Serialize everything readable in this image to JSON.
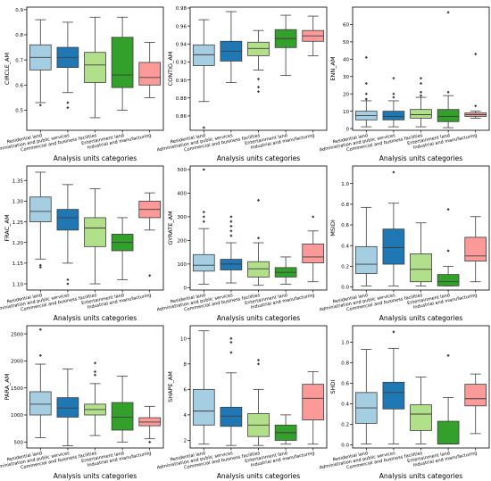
{
  "colors": {
    "residential": "#a6cee3",
    "administration": "#1f78b4",
    "commercial": "#b2df8a",
    "entertainment": "#33a02c",
    "industrial": "#fb9a99"
  },
  "category_labels": [
    "Residential land",
    "Administration and public services",
    "Commercial and business facilities",
    "Entertainment land",
    "Industrial and manufacturing"
  ],
  "xlabel": "Analysis units categories",
  "chart_data": [
    {
      "type": "box",
      "ylabel": "CIRCLE_AM",
      "ylim": [
        0.42,
        0.91
      ],
      "ticks": [
        0.5,
        0.6,
        0.7,
        0.8,
        0.9
      ],
      "tick_labels": [
        "0.5",
        "0.6",
        "0.7",
        "0.8",
        "0.9"
      ],
      "boxes": [
        {
          "whislo": 0.53,
          "q1": 0.66,
          "med": 0.71,
          "q3": 0.76,
          "whishi": 0.86,
          "fliers": [
            0.52
          ]
        },
        {
          "whislo": 0.57,
          "q1": 0.67,
          "med": 0.71,
          "q3": 0.75,
          "whishi": 0.85,
          "fliers": [
            0.51,
            0.53
          ]
        },
        {
          "whislo": 0.47,
          "q1": 0.61,
          "med": 0.68,
          "q3": 0.73,
          "whishi": 0.87,
          "fliers": []
        },
        {
          "whislo": 0.5,
          "q1": 0.59,
          "med": 0.64,
          "q3": 0.79,
          "whishi": 0.87,
          "fliers": []
        },
        {
          "whislo": 0.55,
          "q1": 0.6,
          "med": 0.63,
          "q3": 0.69,
          "whishi": 0.77,
          "fliers": []
        }
      ]
    },
    {
      "type": "box",
      "ylabel": "CONTIG_AM",
      "ylim": [
        0.844,
        0.981
      ],
      "ticks": [
        0.86,
        0.88,
        0.9,
        0.92,
        0.94,
        0.96,
        0.98
      ],
      "tick_labels": [
        "0.86",
        "0.88",
        "0.90",
        "0.92",
        "0.94",
        "0.96",
        "0.98"
      ],
      "boxes": [
        {
          "whislo": 0.876,
          "q1": 0.916,
          "med": 0.928,
          "q3": 0.939,
          "whishi": 0.967,
          "fliers": [
            0.847
          ]
        },
        {
          "whislo": 0.897,
          "q1": 0.921,
          "med": 0.932,
          "q3": 0.943,
          "whishi": 0.976,
          "fliers": []
        },
        {
          "whislo": 0.911,
          "q1": 0.927,
          "med": 0.935,
          "q3": 0.942,
          "whishi": 0.955,
          "fliers": [
            0.887,
            0.892,
            0.901
          ]
        },
        {
          "whislo": 0.905,
          "q1": 0.936,
          "med": 0.946,
          "q3": 0.956,
          "whishi": 0.972,
          "fliers": []
        },
        {
          "whislo": 0.927,
          "q1": 0.943,
          "med": 0.949,
          "q3": 0.955,
          "whishi": 0.971,
          "fliers": []
        }
      ]
    },
    {
      "type": "box",
      "ylabel": "ENN_AM",
      "ylim": [
        -1,
        70
      ],
      "ticks": [
        0,
        10,
        20,
        30,
        40,
        50,
        60
      ],
      "tick_labels": [
        "0",
        "10",
        "20",
        "30",
        "40",
        "50",
        "60"
      ],
      "boxes": [
        {
          "whislo": 1,
          "q1": 5,
          "med": 7.5,
          "q3": 10,
          "whishi": 16,
          "fliers": [
            17,
            20,
            26,
            41
          ]
        },
        {
          "whislo": 1,
          "q1": 5,
          "med": 7,
          "q3": 10,
          "whishi": 16,
          "fliers": [
            18,
            20,
            29
          ]
        },
        {
          "whislo": 1,
          "q1": 6,
          "med": 8,
          "q3": 11,
          "whishi": 18,
          "fliers": [
            19,
            21,
            26,
            29
          ]
        },
        {
          "whislo": 0.5,
          "q1": 4,
          "med": 7,
          "q3": 11,
          "whishi": 19,
          "fliers": [
            21,
            67
          ]
        },
        {
          "whislo": 6,
          "q1": 7,
          "med": 8,
          "q3": 9,
          "whishi": 10,
          "fliers": [
            13,
            43
          ]
        }
      ]
    },
    {
      "type": "box",
      "ylabel": "FRAC_AM",
      "ylim": [
        1.085,
        1.385
      ],
      "ticks": [
        1.1,
        1.15,
        1.2,
        1.25,
        1.3,
        1.35
      ],
      "tick_labels": [
        "1.10",
        "1.15",
        "1.20",
        "1.25",
        "1.30",
        "1.35"
      ],
      "boxes": [
        {
          "whislo": 1.16,
          "q1": 1.25,
          "med": 1.275,
          "q3": 1.31,
          "whishi": 1.37,
          "fliers": [
            1.14,
            1.145
          ]
        },
        {
          "whislo": 1.15,
          "q1": 1.23,
          "med": 1.26,
          "q3": 1.28,
          "whishi": 1.34,
          "fliers": [
            1.1,
            1.11
          ]
        },
        {
          "whislo": 1.1,
          "q1": 1.19,
          "med": 1.235,
          "q3": 1.26,
          "whishi": 1.33,
          "fliers": []
        },
        {
          "whislo": 1.11,
          "q1": 1.18,
          "med": 1.2,
          "q3": 1.22,
          "whishi": 1.26,
          "fliers": []
        },
        {
          "whislo": 1.23,
          "q1": 1.26,
          "med": 1.28,
          "q3": 1.3,
          "whishi": 1.32,
          "fliers": [
            1.12
          ]
        }
      ]
    },
    {
      "type": "box",
      "ylabel": "GYRATE_AM",
      "ylim": [
        -10,
        515
      ],
      "ticks": [
        0,
        100,
        200,
        300,
        400,
        500
      ],
      "tick_labels": [
        "0",
        "100",
        "200",
        "300",
        "400",
        "500"
      ],
      "boxes": [
        {
          "whislo": 15,
          "q1": 70,
          "med": 95,
          "q3": 140,
          "whishi": 250,
          "fliers": [
            280,
            300,
            320,
            500
          ]
        },
        {
          "whislo": 20,
          "q1": 75,
          "med": 100,
          "q3": 120,
          "whishi": 190,
          "fliers": [
            220,
            240,
            260,
            280,
            300
          ]
        },
        {
          "whislo": 10,
          "q1": 45,
          "med": 80,
          "q3": 110,
          "whishi": 190,
          "fliers": [
            210,
            370
          ]
        },
        {
          "whislo": 15,
          "q1": 45,
          "med": 65,
          "q3": 85,
          "whishi": 130,
          "fliers": []
        },
        {
          "whislo": 25,
          "q1": 105,
          "med": 130,
          "q3": 185,
          "whishi": 240,
          "fliers": [
            300
          ]
        }
      ]
    },
    {
      "type": "box",
      "ylabel": "MSIDI",
      "ylim": [
        -0.03,
        1.17
      ],
      "ticks": [
        0.0,
        0.2,
        0.4,
        0.6,
        0.8,
        1.0
      ],
      "tick_labels": [
        "0.0",
        "0.2",
        "0.4",
        "0.6",
        "0.8",
        "1.0"
      ],
      "boxes": [
        {
          "whislo": 0.01,
          "q1": 0.13,
          "med": 0.22,
          "q3": 0.39,
          "whishi": 0.77,
          "fliers": []
        },
        {
          "whislo": 0.01,
          "q1": 0.22,
          "med": 0.38,
          "q3": 0.56,
          "whishi": 0.81,
          "fliers": [
            1.11
          ]
        },
        {
          "whislo": 0.01,
          "q1": 0.05,
          "med": 0.17,
          "q3": 0.32,
          "whishi": 0.62,
          "fliers": []
        },
        {
          "whislo": 0.01,
          "q1": 0.01,
          "med": 0.05,
          "q3": 0.12,
          "whishi": 0.2,
          "fliers": [
            0.35,
            0.75
          ]
        },
        {
          "whislo": 0.05,
          "q1": 0.25,
          "med": 0.3,
          "q3": 0.48,
          "whishi": 0.68,
          "fliers": []
        }
      ]
    },
    {
      "type": "box",
      "ylabel": "PARA_AM",
      "ylim": [
        390,
        2650
      ],
      "ticks": [
        500,
        1000,
        1500,
        2000,
        2500
      ],
      "tick_labels": [
        "500",
        "1000",
        "1500",
        "2000",
        "2500"
      ],
      "boxes": [
        {
          "whislo": 580,
          "q1": 1000,
          "med": 1200,
          "q3": 1430,
          "whishi": 1940,
          "fliers": [
            2100,
            2580
          ]
        },
        {
          "whislo": 430,
          "q1": 960,
          "med": 1130,
          "q3": 1320,
          "whishi": 1850,
          "fliers": []
        },
        {
          "whislo": 620,
          "q1": 1000,
          "med": 1100,
          "q3": 1200,
          "whishi": 1580,
          "fliers": [
            1740,
            1800,
            1960
          ]
        },
        {
          "whislo": 500,
          "q1": 720,
          "med": 960,
          "q3": 1230,
          "whishi": 1720,
          "fliers": []
        },
        {
          "whislo": 560,
          "q1": 800,
          "med": 870,
          "q3": 950,
          "whishi": 1160,
          "fliers": [
            500
          ]
        }
      ]
    },
    {
      "type": "box",
      "ylabel": "SHAPE_AM",
      "ylim": [
        1.4,
        11
      ],
      "ticks": [
        2,
        4,
        6,
        8,
        10
      ],
      "tick_labels": [
        "2",
        "4",
        "6",
        "8",
        "10"
      ],
      "boxes": [
        {
          "whislo": 1.7,
          "q1": 3.2,
          "med": 4.3,
          "q3": 6.0,
          "whishi": 10.6,
          "fliers": []
        },
        {
          "whislo": 1.6,
          "q1": 3.1,
          "med": 3.9,
          "q3": 4.6,
          "whishi": 7.3,
          "fliers": [
            8.9,
            9.7,
            10.0
          ]
        },
        {
          "whislo": 1.6,
          "q1": 2.3,
          "med": 3.2,
          "q3": 4.1,
          "whishi": 6.0,
          "fliers": [
            8.0,
            8.3
          ]
        },
        {
          "whislo": 1.7,
          "q1": 2.0,
          "med": 2.6,
          "q3": 3.2,
          "whishi": 4.0,
          "fliers": []
        },
        {
          "whislo": 1.7,
          "q1": 3.6,
          "med": 5.3,
          "q3": 6.4,
          "whishi": 7.4,
          "fliers": []
        }
      ]
    },
    {
      "type": "box",
      "ylabel": "SHDI",
      "ylim": [
        -0.03,
        1.16
      ],
      "ticks": [
        0.0,
        0.2,
        0.4,
        0.6,
        0.8,
        1.0
      ],
      "tick_labels": [
        "0.0",
        "0.2",
        "0.4",
        "0.6",
        "0.8",
        "1.0"
      ],
      "boxes": [
        {
          "whislo": 0.01,
          "q1": 0.21,
          "med": 0.36,
          "q3": 0.51,
          "whishi": 0.93,
          "fliers": []
        },
        {
          "whislo": 0.01,
          "q1": 0.35,
          "med": 0.51,
          "q3": 0.61,
          "whishi": 0.94,
          "fliers": [
            1.1
          ]
        },
        {
          "whislo": 0.01,
          "q1": 0.14,
          "med": 0.3,
          "q3": 0.39,
          "whishi": 0.66,
          "fliers": []
        },
        {
          "whislo": 0.01,
          "q1": 0.01,
          "med": 0.01,
          "q3": 0.23,
          "whishi": 0.46,
          "fliers": [
            0.87
          ]
        },
        {
          "whislo": 0.11,
          "q1": 0.38,
          "med": 0.45,
          "q3": 0.59,
          "whishi": 0.69,
          "fliers": []
        }
      ]
    }
  ]
}
